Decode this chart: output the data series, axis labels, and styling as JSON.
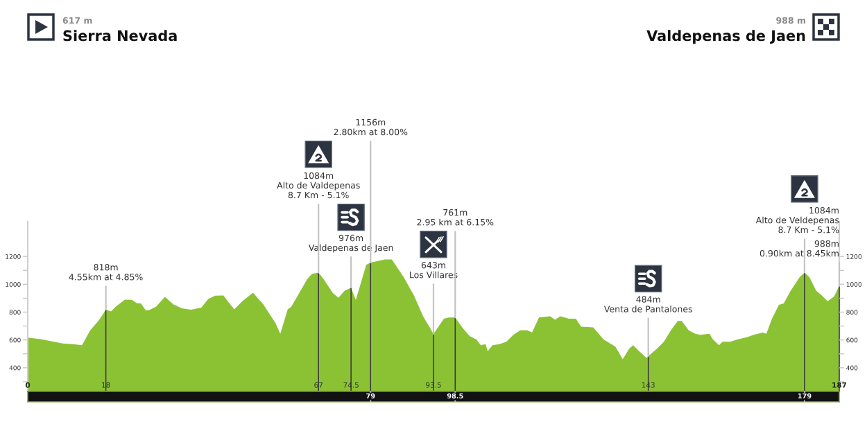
{
  "chart_data": {
    "type": "area",
    "annotations": [
      "617 m",
      "Sierra Nevada",
      "988 m",
      "Valdepenas de Jaen",
      {
        "text": "818m\n4.55km at 4.85%",
        "x": 18,
        "y": 818
      },
      {
        "text": "1084m\nAlto de Valdepenas\n8.7 Km - 5.1%",
        "x": 67,
        "y": 1084
      },
      {
        "text": "976m\nValdepenas de Jaen",
        "x": 74.5,
        "y": 976
      },
      {
        "text": "1156m\n2.80km at 8.00%",
        "x": 79,
        "y": 1156
      },
      {
        "text": "643m\nLos Villares",
        "x": 93.5,
        "y": 643
      },
      {
        "text": "761m\n2.95 km at 6.15%",
        "x": 98.5,
        "y": 761
      },
      {
        "text": "484m\nVenta de Pantalones",
        "x": 143,
        "y": 484
      },
      {
        "text": "1084m\nAlto de Veldepenas\n8.7 Km - 5.1%",
        "x": 179,
        "y": 1084
      },
      {
        "text": "988m\n0.90km at 8.45km",
        "x": 187,
        "y": 988
      }
    ],
    "series": [
      {
        "color": "#8bc234",
        "x": [
          0,
          3.2,
          8.0,
          10.4,
          12.5,
          14.4,
          16.5,
          18,
          19.2,
          20.3,
          22.4,
          24.0,
          25.1,
          26.1,
          27.2,
          28.0,
          29.6,
          31.6,
          33.6,
          35.5,
          37.6,
          40.0,
          41.6,
          43.2,
          45.1,
          46.3,
          47.6,
          49.5,
          51.9,
          54.3,
          57.1,
          58.2,
          59.9,
          60.7,
          64.4,
          65.5,
          67,
          68.2,
          70.3,
          71.6,
          73.0,
          74.5,
          75.6,
          78.0,
          79,
          81.0,
          82.3,
          83.9,
          86.6,
          89.0,
          91.1,
          92.7,
          93.5,
          95.9,
          97.0,
          98.5,
          100.2,
          101.8,
          103.4,
          104.4,
          105.5,
          106.0,
          107.1,
          108.7,
          110.3,
          111.9,
          113.5,
          115.1,
          116.2,
          117.2,
          117.8,
          120.4,
          121.5,
          122.7,
          124.7,
          126.3,
          127.5,
          130.3,
          132.7,
          135.4,
          137.1,
          138.6,
          139.5,
          140.6,
          142.6,
          143,
          145.0,
          146.6,
          148.2,
          149.8,
          150.7,
          152.3,
          153.8,
          155.0,
          157.1,
          157.9,
          159.3,
          160.1,
          161.9,
          163.5,
          165.7,
          167.3,
          169.4,
          170.2,
          171.5,
          173.1,
          174.2,
          175.8,
          177.9,
          179,
          180.1,
          181.7,
          183.0,
          184.3,
          185.8,
          187
        ],
        "values": [
          617,
          605,
          575,
          570,
          563,
          670,
          745,
          818,
          805,
          840,
          890,
          888,
          865,
          862,
          812,
          815,
          840,
          910,
          855,
          828,
          817,
          833,
          895,
          918,
          920,
          870,
          820,
          880,
          940,
          855,
          720,
          645,
          820,
          838,
          1037,
          1075,
          1084,
          1037,
          937,
          903,
          953,
          976,
          887,
          1140,
          1156,
          1170,
          1178,
          1178,
          1053,
          920,
          770,
          687,
          643,
          753,
          762,
          761,
          687,
          628,
          603,
          562,
          570,
          520,
          562,
          570,
          587,
          637,
          670,
          670,
          653,
          720,
          762,
          770,
          745,
          770,
          753,
          753,
          695,
          690,
          603,
          553,
          462,
          537,
          562,
          528,
          470,
          484,
          537,
          587,
          670,
          737,
          737,
          670,
          645,
          637,
          645,
          603,
          562,
          587,
          587,
          603,
          620,
          637,
          653,
          645,
          753,
          853,
          862,
          953,
          1053,
          1084,
          1053,
          953,
          920,
          878,
          912,
          988
        ]
      },
      {
        "type": "bar",
        "color": "#3c3c3c",
        "x": [
          18,
          67,
          74.5,
          79,
          93.5,
          98.5,
          143,
          179,
          187
        ],
        "values": [
          818,
          1084,
          976,
          1156,
          643,
          761,
          484,
          1084,
          988
        ]
      }
    ],
    "xlim": [
      0,
      187
    ],
    "xticks": [
      0,
      18,
      67,
      74.5,
      93.5,
      143,
      187
    ],
    "x2lim": [
      0,
      187
    ],
    "x2ticks": [
      79,
      98.5,
      179
    ],
    "ylim": [
      230,
      1450
    ],
    "yticks": [
      {
        "value": 300,
        "label": null
      },
      400,
      {
        "value": 500,
        "label": null
      },
      600,
      {
        "value": 700,
        "label": null
      },
      800,
      {
        "value": 900,
        "label": null
      },
      1000,
      {
        "value": 1100,
        "label": null
      },
      1200
    ],
    "y2lim": [
      230,
      1450
    ],
    "y2ticks": [
      {
        "value": 300,
        "label": null
      },
      400,
      {
        "value": 500,
        "label": null
      },
      600,
      {
        "value": 700,
        "label": null
      },
      800,
      {
        "value": 900,
        "label": null
      },
      1000,
      {
        "value": 1100,
        "label": null
      },
      1200
    ]
  }
}
